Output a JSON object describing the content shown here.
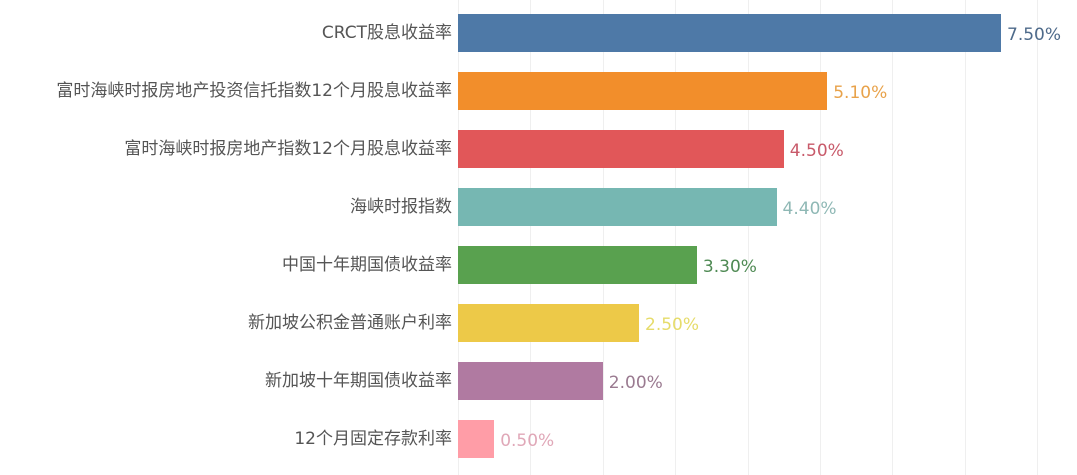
{
  "chart_data": {
    "type": "bar",
    "orientation": "horizontal",
    "title": "",
    "xlabel": "",
    "ylabel": "",
    "xlim": [
      0,
      8.5
    ],
    "grid": true,
    "categories": [
      "CRCT股息收益率",
      "富时海峡时报房地产投资信托指数12个月股息收益率",
      "富时海峡时报房地产指数12个月股息收益率",
      "海峡时报指数",
      "中国十年期国债收益率",
      "新加坡公积金普通账户利率",
      "新加坡十年期国债收益率",
      "12个月固定存款利率"
    ],
    "values": [
      7.5,
      5.1,
      4.5,
      4.4,
      3.3,
      2.5,
      2.0,
      0.5
    ],
    "value_labels": [
      "7.50%",
      "5.10%",
      "4.50%",
      "4.40%",
      "3.30%",
      "2.50%",
      "2.00%",
      "0.50%"
    ],
    "colors": [
      "#4e79a7",
      "#f28e2b",
      "#e15759",
      "#76b7b2",
      "#59a14f",
      "#edc948",
      "#b07aa1",
      "#ff9da7"
    ],
    "label_colors": [
      "#4e6a8a",
      "#e8a24a",
      "#c85a6a",
      "#8fb8b5",
      "#4f8a54",
      "#e6dc6a",
      "#9a7a90",
      "#e0a8b8"
    ]
  },
  "rows": [
    {
      "label": "CRCT股息收益率",
      "value": "7.50%"
    },
    {
      "label": "富时海峡时报房地产投资信托指数12个月股息收益率",
      "value": "5.10%"
    },
    {
      "label": "富时海峡时报房地产指数12个月股息收益率",
      "value": "4.50%"
    },
    {
      "label": "海峡时报指数",
      "value": "4.40%"
    },
    {
      "label": "中国十年期国债收益率",
      "value": "3.30%"
    },
    {
      "label": "新加坡公积金普通账户利率",
      "value": "2.50%"
    },
    {
      "label": "新加坡十年期国债收益率",
      "value": "2.00%"
    },
    {
      "label": "12个月固定存款利率",
      "value": "0.50%"
    }
  ]
}
